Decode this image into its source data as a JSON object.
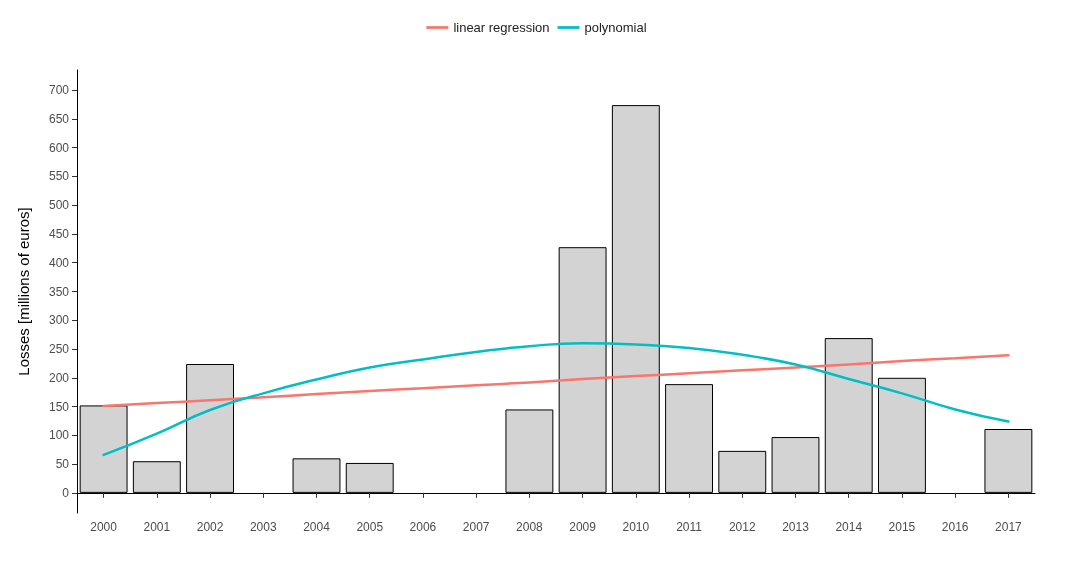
{
  "chart_data": {
    "type": "bar",
    "ylabel": "Losses [millions of euros]",
    "categories": [
      "2000",
      "2001",
      "2002",
      "2003",
      "2004",
      "2005",
      "2006",
      "2007",
      "2008",
      "2009",
      "2010",
      "2011",
      "2012",
      "2013",
      "2014",
      "2015",
      "2016",
      "2017"
    ],
    "series": [
      {
        "color": "#d3d3d3",
        "values": [
          152,
          55,
          224,
          null,
          60,
          52,
          null,
          null,
          145,
          427,
          674,
          189,
          73,
          97,
          269,
          200,
          null,
          111
        ]
      },
      {
        "type": "line",
        "name": "linear regression",
        "color": "#f8766d",
        "values": [
          151,
          156,
          161,
          166,
          172,
          177,
          182,
          187,
          192,
          198,
          203,
          208,
          213,
          218,
          223,
          229,
          234,
          239
        ]
      },
      {
        "type": "line",
        "name": "polynomial",
        "color": "#00bfc4",
        "values": [
          66,
          103,
          144,
          173,
          197,
          218,
          232,
          245,
          255,
          260,
          258,
          252,
          240,
          223,
          198,
          173,
          145,
          124
        ]
      }
    ],
    "ylim": [
      -35,
      735
    ],
    "yticks": [
      0,
      50,
      100,
      150,
      200,
      250,
      300,
      350,
      400,
      450,
      500,
      550,
      600,
      650,
      700
    ],
    "grid": false,
    "legend": "top",
    "marker": "none",
    "line_style": "solid"
  }
}
